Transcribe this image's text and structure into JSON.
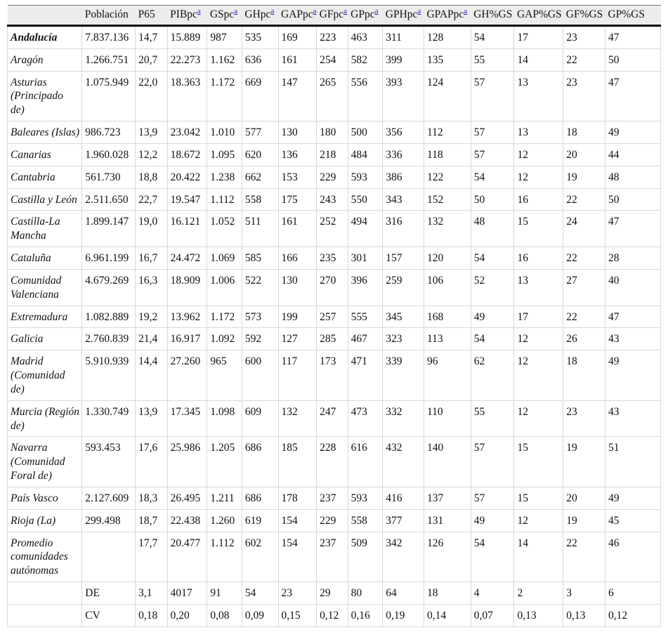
{
  "table": {
    "footnote_link_label": "a",
    "columns": [
      {
        "id": "region",
        "label": "",
        "footnote": ""
      },
      {
        "id": "poblacion",
        "label": "Población",
        "footnote": ""
      },
      {
        "id": "p65",
        "label": "P65",
        "footnote": ""
      },
      {
        "id": "pibpc",
        "label": "PIBpc",
        "footnote": "a"
      },
      {
        "id": "gspc",
        "label": "GSpc",
        "footnote": "a"
      },
      {
        "id": "ghpc",
        "label": "GHpc",
        "footnote": "a"
      },
      {
        "id": "gappc",
        "label": "GAPpc",
        "footnote": "a"
      },
      {
        "id": "gfpc",
        "label": "GFpc",
        "footnote": "a"
      },
      {
        "id": "gppc",
        "label": "GPpc",
        "footnote": "a"
      },
      {
        "id": "gphpc",
        "label": "GPHpc",
        "footnote": "a"
      },
      {
        "id": "gpappc",
        "label": "GPAPpc",
        "footnote": "a"
      },
      {
        "id": "ghgs",
        "label": "GH%GS",
        "footnote": ""
      },
      {
        "id": "gapgs",
        "label": "GAP%GS",
        "footnote": ""
      },
      {
        "id": "gfgs",
        "label": "GF%GS",
        "footnote": ""
      },
      {
        "id": "gpgs",
        "label": "GP%GS",
        "footnote": ""
      }
    ],
    "rows": [
      {
        "name": "Andalucía",
        "bold": true,
        "cells": [
          "7.837.136",
          "14,7",
          "15.889",
          "987",
          "535",
          "169",
          "223",
          "463",
          "311",
          "128",
          "54",
          "17",
          "23",
          "47"
        ]
      },
      {
        "name": "Aragón",
        "bold": false,
        "cells": [
          "1.266.751",
          "20,7",
          "22.273",
          "1.162",
          "636",
          "161",
          "254",
          "582",
          "399",
          "135",
          "55",
          "14",
          "22",
          "50"
        ]
      },
      {
        "name": "Asturias (Principado de)",
        "bold": false,
        "cells": [
          "1.075.949",
          "22,0",
          "18.363",
          "1.172",
          "669",
          "147",
          "265",
          "556",
          "393",
          "124",
          "57",
          "13",
          "23",
          "47"
        ]
      },
      {
        "name": "Baleares (Islas)",
        "bold": false,
        "cells": [
          "986.723",
          "13,9",
          "23.042",
          "1.010",
          "577",
          "130",
          "180",
          "500",
          "356",
          "112",
          "57",
          "13",
          "18",
          "49"
        ]
      },
      {
        "name": "Canarias",
        "bold": false,
        "cells": [
          "1.960.028",
          "12,2",
          "18.672",
          "1.095",
          "620",
          "136",
          "218",
          "484",
          "336",
          "118",
          "57",
          "12",
          "20",
          "44"
        ]
      },
      {
        "name": "Cantabria",
        "bold": false,
        "cells": [
          "561.730",
          "18,8",
          "20.422",
          "1.238",
          "662",
          "153",
          "229",
          "593",
          "386",
          "122",
          "54",
          "12",
          "19",
          "48"
        ]
      },
      {
        "name": "Castilla y León",
        "bold": false,
        "cells": [
          "2.511.650",
          "22,7",
          "19.547",
          "1.112",
          "558",
          "175",
          "243",
          "550",
          "343",
          "152",
          "50",
          "16",
          "22",
          "50"
        ]
      },
      {
        "name": "Castilla-La Mancha",
        "bold": false,
        "cells": [
          "1.899.147",
          "19,0",
          "16.121",
          "1.052",
          "511",
          "161",
          "252",
          "494",
          "316",
          "132",
          "48",
          "15",
          "24",
          "47"
        ]
      },
      {
        "name": "Cataluña",
        "bold": false,
        "cells": [
          "6.961.199",
          "16,7",
          "24.472",
          "1.069",
          "585",
          "166",
          "235",
          "301",
          "157",
          "120",
          "54",
          "16",
          "22",
          "28"
        ]
      },
      {
        "name": "Comunidad Valenciana",
        "bold": false,
        "cells": [
          "4.679.269",
          "16,3",
          "18.909",
          "1.006",
          "522",
          "130",
          "270",
          "396",
          "259",
          "106",
          "52",
          "13",
          "27",
          "40"
        ]
      },
      {
        "name": "Extremadura",
        "bold": false,
        "cells": [
          "1.082.889",
          "19,2",
          "13.962",
          "1.172",
          "573",
          "199",
          "257",
          "555",
          "345",
          "168",
          "49",
          "17",
          "22",
          "47"
        ]
      },
      {
        "name": "Galicia",
        "bold": false,
        "cells": [
          "2.760.839",
          "21,4",
          "16.917",
          "1.092",
          "592",
          "127",
          "285",
          "467",
          "323",
          "113",
          "54",
          "12",
          "26",
          "43"
        ]
      },
      {
        "name": "Madrid (Comunidad de)",
        "bold": false,
        "cells": [
          "5.910.939",
          "14,4",
          "27.260",
          "965",
          "600",
          "117",
          "173",
          "471",
          "339",
          "96",
          "62",
          "12",
          "18",
          "49"
        ]
      },
      {
        "name": "Murcia (Región de)",
        "bold": false,
        "cells": [
          "1.330.749",
          "13,9",
          "17.345",
          "1.098",
          "609",
          "132",
          "247",
          "473",
          "332",
          "110",
          "55",
          "12",
          "23",
          "43"
        ]
      },
      {
        "name": "Navarra (Comunidad Foral de)",
        "bold": false,
        "cells": [
          "593.453",
          "17,6",
          "25.986",
          "1.205",
          "686",
          "185",
          "228",
          "616",
          "432",
          "140",
          "57",
          "15",
          "19",
          "51"
        ]
      },
      {
        "name": "País Vasco",
        "bold": false,
        "cells": [
          "2.127.609",
          "18,3",
          "26.495",
          "1.211",
          "686",
          "178",
          "237",
          "593",
          "416",
          "137",
          "57",
          "15",
          "20",
          "49"
        ]
      },
      {
        "name": "Rioja (La)",
        "bold": false,
        "cells": [
          "299.498",
          "18,7",
          "22.438",
          "1.260",
          "619",
          "154",
          "229",
          "558",
          "377",
          "131",
          "49",
          "12",
          "19",
          "45"
        ]
      },
      {
        "name": "Promedio comunidades autónomas",
        "bold": false,
        "cells": [
          "",
          "17,7",
          "20.477",
          "1.112",
          "602",
          "154",
          "237",
          "509",
          "342",
          "126",
          "54",
          "14",
          "22",
          "46"
        ]
      },
      {
        "name": "",
        "bold": false,
        "cells": [
          "DE",
          "3,1",
          "4017",
          "91",
          "54",
          "23",
          "29",
          "80",
          "64",
          "18",
          "4",
          "2",
          "3",
          "6"
        ]
      },
      {
        "name": "",
        "bold": false,
        "cells": [
          "CV",
          "0,18",
          "0,20",
          "0,08",
          "0,09",
          "0,15",
          "0,12",
          "0,16",
          "0,19",
          "0,14",
          "0,07",
          "0,13",
          "0,13",
          "0,12"
        ]
      }
    ]
  },
  "colors": {
    "header_bg": "#ececec",
    "rule_dark": "#000000",
    "grid_light": "#d8d8d8",
    "footnote_link": "#2323cc",
    "text": "#111111"
  }
}
